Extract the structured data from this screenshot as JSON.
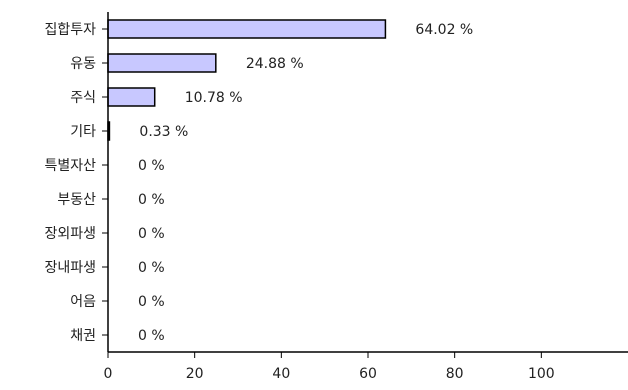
{
  "chart_data": {
    "type": "bar",
    "orientation": "horizontal",
    "categories": [
      "집합투자",
      "유동",
      "주식",
      "기타",
      "특별자산",
      "부동산",
      "장외파생",
      "장내파생",
      "어음",
      "채권"
    ],
    "values": [
      64.02,
      24.88,
      10.78,
      0.33,
      0,
      0,
      0,
      0,
      0,
      0
    ],
    "value_labels": [
      "64.02 %",
      "24.88 %",
      "10.78 %",
      "0.33 %",
      "0 %",
      "0 %",
      "0 %",
      "0 %",
      "0 %",
      "0 %"
    ],
    "xlim": [
      0,
      120
    ],
    "x_ticks": [
      0,
      20,
      40,
      60,
      80,
      100
    ],
    "grid": false,
    "legend": "none",
    "bar_color": "#c8c8ff",
    "bar_border_color": "#000000"
  }
}
